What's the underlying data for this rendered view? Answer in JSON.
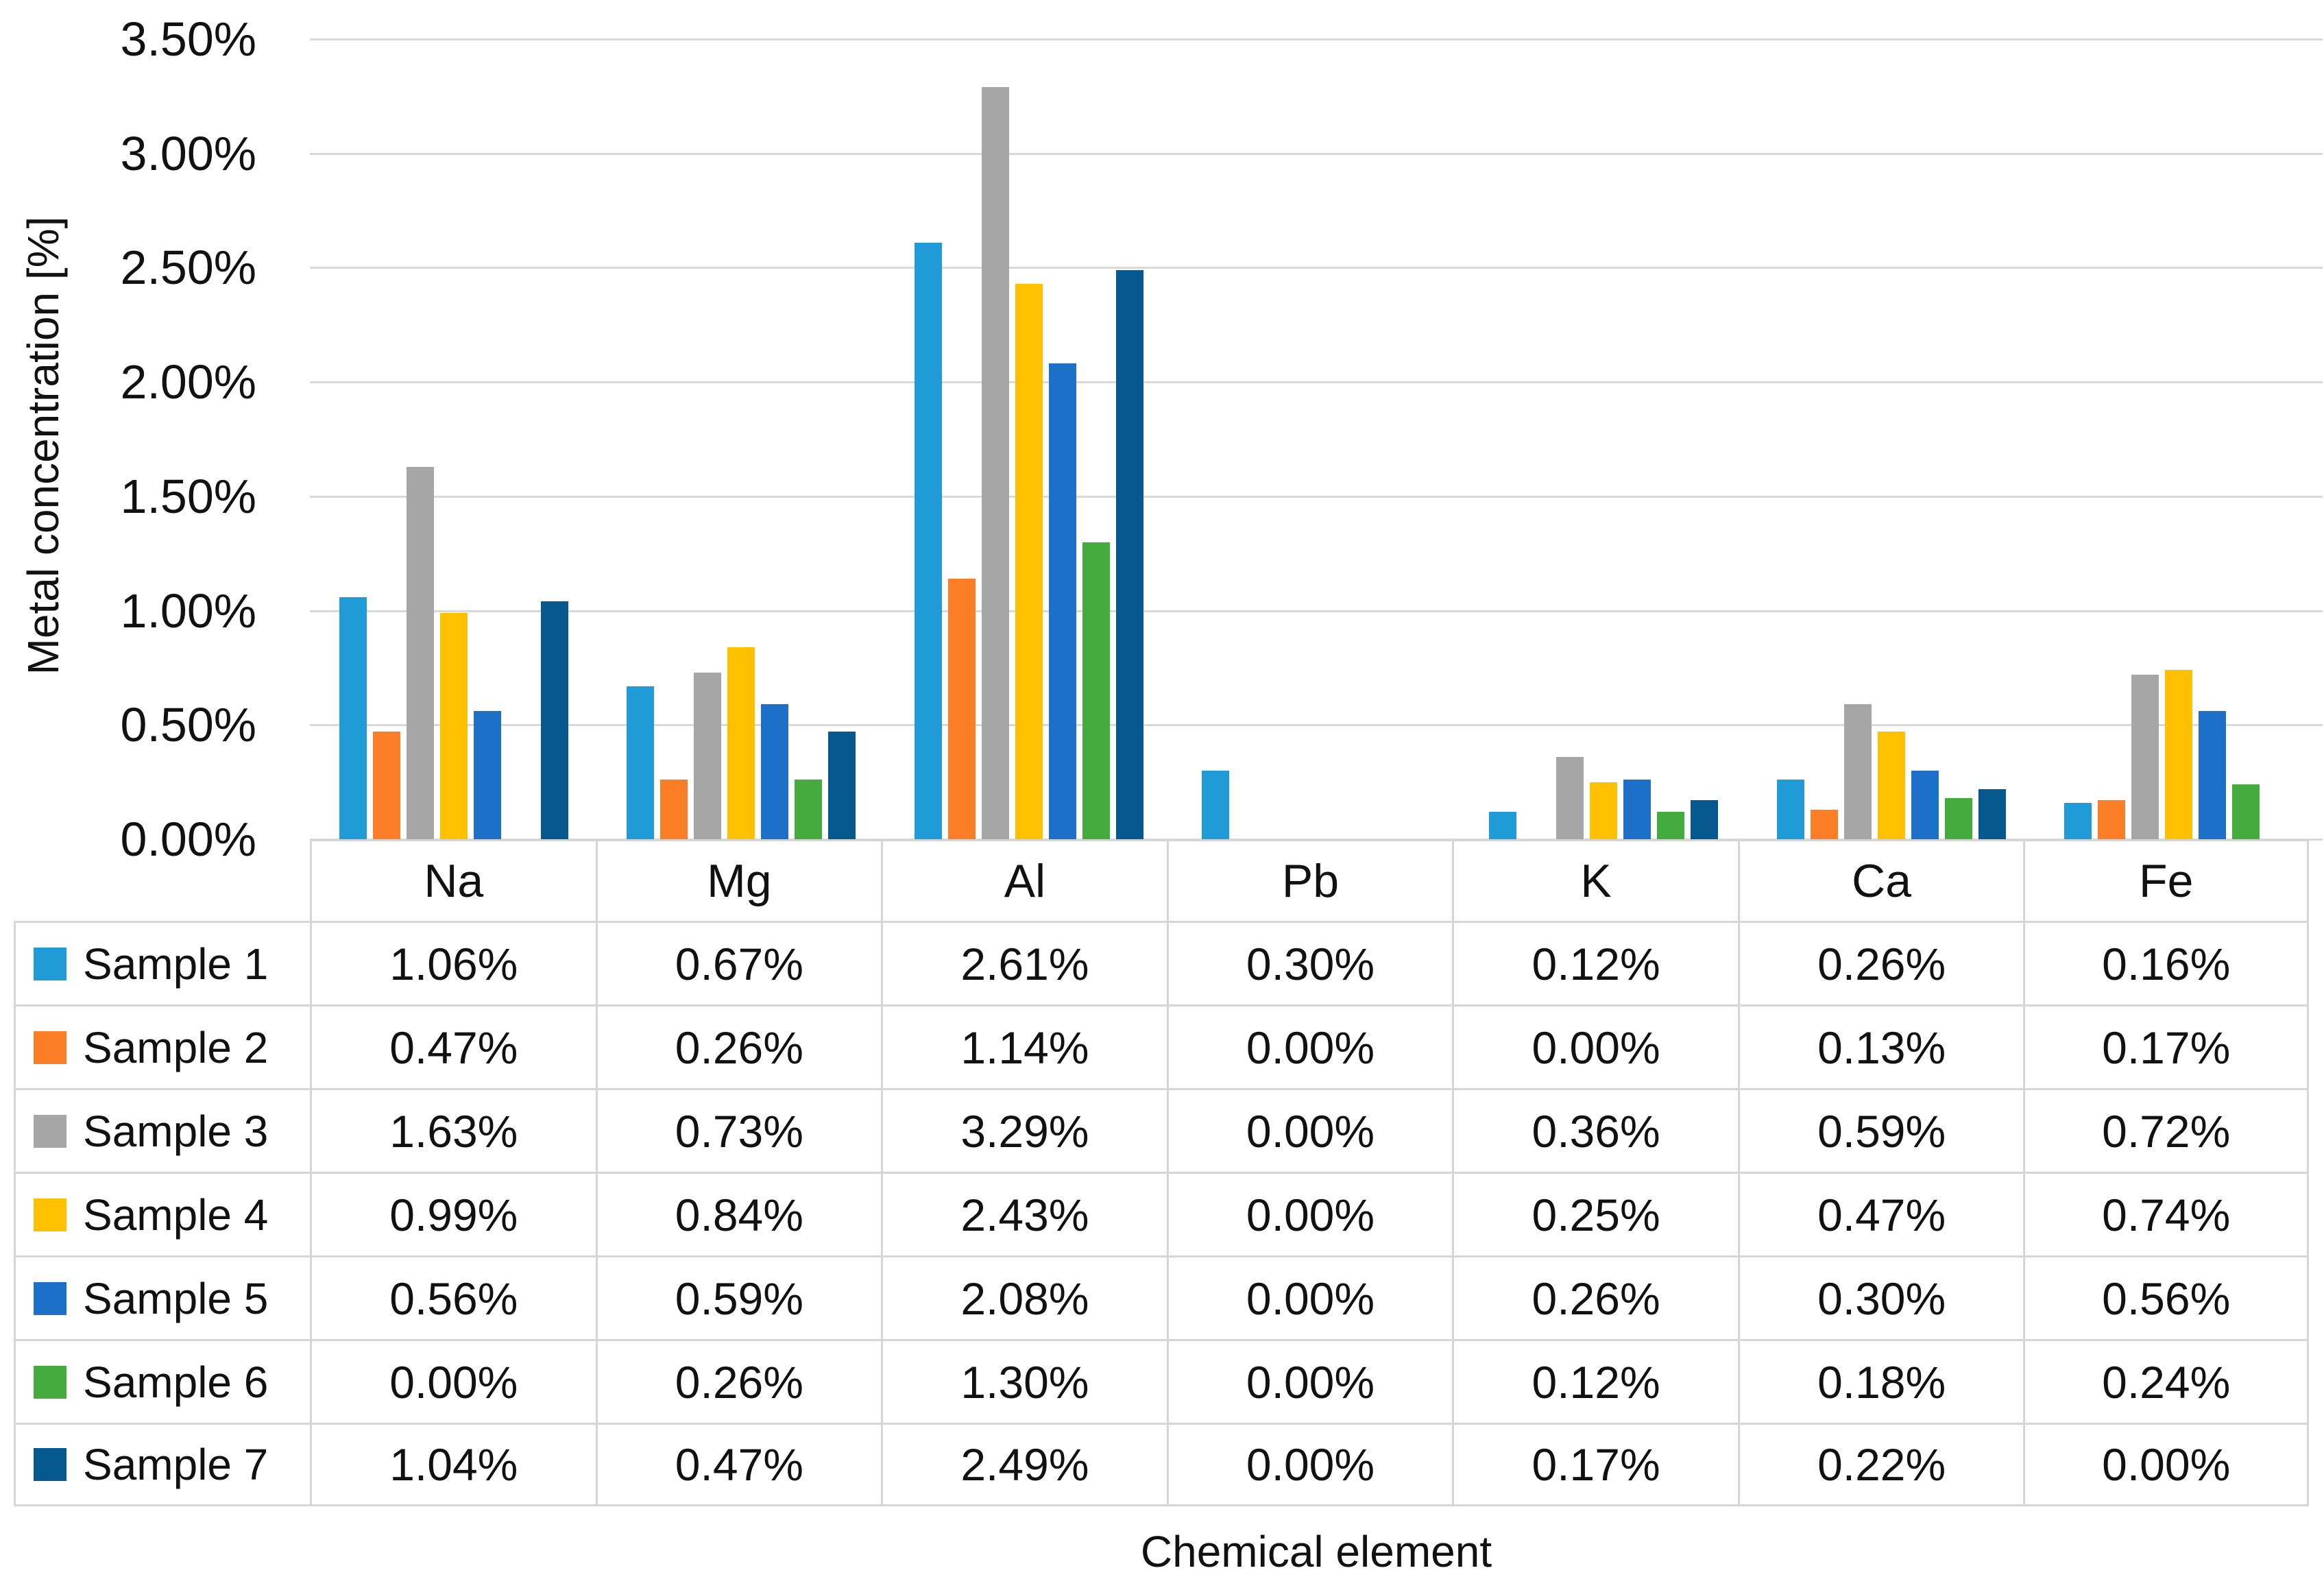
{
  "chart_data": {
    "type": "bar",
    "title": "",
    "xlabel": "Chemical element",
    "ylabel": "Metal concentration [%]",
    "categories": [
      "Na",
      "Mg",
      "Al",
      "Pb",
      "K",
      "Ca",
      "Fe"
    ],
    "series": [
      {
        "name": "Sample 1",
        "color": "#209BD8",
        "values": [
          1.06,
          0.67,
          2.61,
          0.3,
          0.12,
          0.26,
          0.16
        ]
      },
      {
        "name": "Sample 2",
        "color": "#FB7D26",
        "values": [
          0.47,
          0.26,
          1.14,
          0.0,
          0.0,
          0.13,
          0.17
        ]
      },
      {
        "name": "Sample 3",
        "color": "#A6A6A6",
        "values": [
          1.63,
          0.73,
          3.29,
          0.0,
          0.36,
          0.59,
          0.72
        ]
      },
      {
        "name": "Sample 4",
        "color": "#FFC000",
        "values": [
          0.99,
          0.84,
          2.43,
          0.0,
          0.25,
          0.47,
          0.74
        ]
      },
      {
        "name": "Sample 5",
        "color": "#1C70C8",
        "values": [
          0.56,
          0.59,
          2.08,
          0.0,
          0.26,
          0.3,
          0.56
        ]
      },
      {
        "name": "Sample 6",
        "color": "#44AC3C",
        "values": [
          0.0,
          0.26,
          1.3,
          0.0,
          0.12,
          0.18,
          0.24
        ]
      },
      {
        "name": "Sample 7",
        "color": "#05598F",
        "values": [
          1.04,
          0.47,
          2.49,
          0.0,
          0.17,
          0.22,
          0.0
        ]
      }
    ],
    "y_ticks": [
      "3.50%",
      "3.00%",
      "2.50%",
      "2.00%",
      "1.50%",
      "1.00%",
      "0.50%",
      "0.00%"
    ],
    "ylim": [
      0,
      3.5
    ],
    "grid": true,
    "legend_position": "table-left",
    "value_format": "0.00%",
    "gridline_color": "#D9D9D9",
    "table_border_color": "#D6D6D6"
  }
}
